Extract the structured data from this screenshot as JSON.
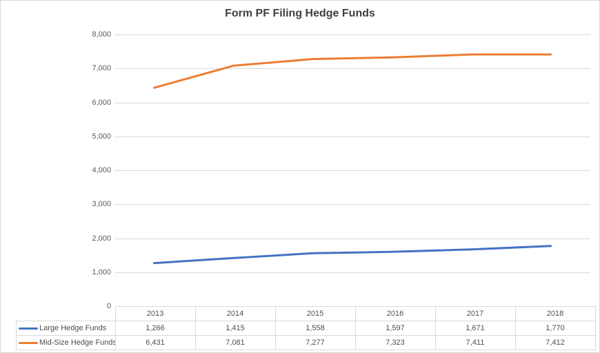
{
  "chart_data": {
    "type": "line",
    "title": "Form PF Filing Hedge Funds",
    "categories": [
      "2013",
      "2014",
      "2015",
      "2016",
      "2017",
      "2018"
    ],
    "series": [
      {
        "name": "Large Hedge Funds",
        "color": "#4472C4",
        "values": [
          1266,
          1415,
          1558,
          1597,
          1671,
          1770
        ],
        "display_values": [
          "1,266",
          "1,415",
          "1,558",
          "1,597",
          "1,671",
          "1,770"
        ]
      },
      {
        "name": "Mid-Size Hedge Funds",
        "color": "#ED7D31",
        "values": [
          6431,
          7081,
          7277,
          7323,
          7411,
          7412
        ],
        "display_values": [
          "6,431",
          "7,081",
          "7,277",
          "7,323",
          "7,411",
          "7,412"
        ]
      }
    ],
    "xlabel": "",
    "ylabel": "",
    "ylim": [
      0,
      8000
    ],
    "y_tick_step": 1000,
    "y_tick_labels_top_to_bottom": [
      "8,000",
      "7,000",
      "6,000",
      "5,000",
      "4,000",
      "3,000",
      "2,000",
      "1,000",
      "0"
    ],
    "grid": true,
    "legend_position": "data-table-left",
    "gridline_color": "#D9D9D9",
    "axis_label_color": "#595959",
    "title_color": "#404040"
  }
}
